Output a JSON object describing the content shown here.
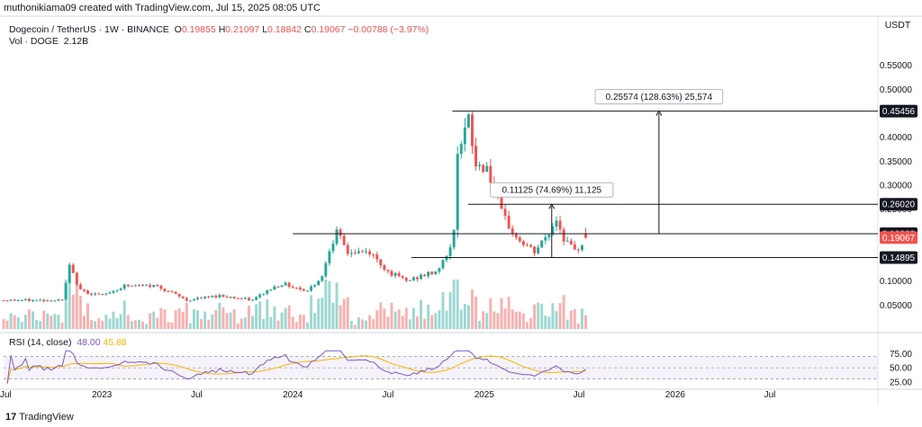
{
  "header": {
    "credit": "muthonikiama09 created with TradingView.com, Jul 15, 2025 08:05 UTC"
  },
  "legend": {
    "symbol": "Dogecoin / TetherUS · 1W · BINANCE",
    "open_label": "O",
    "open": "0.19855",
    "high_label": "H",
    "high": "0.21097",
    "low_label": "L",
    "low": "0.18842",
    "close_label": "C",
    "close": "0.19067",
    "change": "−0.00788 (−3.97%)",
    "volume_label": "Vol · DOGE",
    "volume_value": "2.12B",
    "rsi_label": "RSI (14, close)",
    "rsi_value": "48.00",
    "rsi_ma_value": "45.88"
  },
  "currency": "USDT",
  "brand": {
    "logo": "17",
    "name": "TradingView"
  },
  "colors": {
    "up": "#26a69a",
    "down": "#ef5350",
    "rsi": "#7e57c2",
    "rsi_ma": "#f5b800"
  },
  "chart_data": {
    "type": "candlestick",
    "x_ticks": [
      "Jul",
      "2023",
      "Jul",
      "2024",
      "Jul",
      "2025",
      "Jul",
      "2026",
      "Jul"
    ],
    "x_tick_dates": [
      "2022-07-01",
      "2023-01-01",
      "2023-07-01",
      "2024-01-01",
      "2024-07-01",
      "2025-01-01",
      "2025-07-01",
      "2026-01-01",
      "2026-07-01"
    ],
    "x_range": [
      "2022-06-27",
      "2027-01-15"
    ],
    "y_ticks": [
      0.55,
      0.5,
      0.45,
      0.4,
      0.35,
      0.3,
      0.25,
      0.2,
      0.15,
      0.1,
      0.05
    ],
    "y_tick_labels": [
      "0.55000",
      "0.50000",
      "0.45000",
      "0.40000",
      "0.35000",
      "0.30000",
      "0.25000",
      "0.20000",
      "0.15000",
      "0.10000",
      "0.05000"
    ],
    "y_range": [
      0.0,
      0.57
    ],
    "price_levels": [
      {
        "value": 0.45456,
        "label": "0.45456",
        "start": "2024-11-01"
      },
      {
        "value": 0.2602,
        "label": "0.26020",
        "start": "2024-12-01"
      },
      {
        "value": 0.19882,
        "label": "0.19882",
        "start": "2024-01-01"
      },
      {
        "value": 0.14895,
        "label": "0.14895",
        "start": "2024-08-15"
      }
    ],
    "last_price": {
      "value": 0.19067,
      "label": "0.19067"
    },
    "measurements": [
      {
        "text": "0.11125 (74.69%) 11,125",
        "date": "2025-05-10",
        "from": 0.14895,
        "to": 0.2602
      },
      {
        "text": "0.25574 (128.63%) 25,574",
        "date": "2025-12-01",
        "from": 0.19882,
        "to": 0.45456
      }
    ],
    "anchors": [
      [
        "2022-06-27",
        0.06
      ],
      [
        "2022-10-17",
        0.06
      ],
      [
        "2022-10-31",
        0.13
      ],
      [
        "2022-11-21",
        0.08
      ],
      [
        "2023-01-02",
        0.07
      ],
      [
        "2023-02-13",
        0.09
      ],
      [
        "2023-04-17",
        0.09
      ],
      [
        "2023-06-12",
        0.06
      ],
      [
        "2023-08-14",
        0.07
      ],
      [
        "2023-10-16",
        0.06
      ],
      [
        "2023-11-13",
        0.08
      ],
      [
        "2023-12-11",
        0.095
      ],
      [
        "2024-01-29",
        0.08
      ],
      [
        "2024-02-26",
        0.11
      ],
      [
        "2024-03-11",
        0.17
      ],
      [
        "2024-03-25",
        0.2
      ],
      [
        "2024-04-15",
        0.16
      ],
      [
        "2024-05-27",
        0.16
      ],
      [
        "2024-07-01",
        0.12
      ],
      [
        "2024-08-05",
        0.1
      ],
      [
        "2024-09-30",
        0.12
      ],
      [
        "2024-10-21",
        0.15
      ],
      [
        "2024-11-04",
        0.2
      ],
      [
        "2024-11-11",
        0.38
      ],
      [
        "2024-12-02",
        0.43
      ],
      [
        "2024-12-16",
        0.34
      ],
      [
        "2025-01-06",
        0.34
      ],
      [
        "2025-02-03",
        0.24
      ],
      [
        "2025-03-03",
        0.19
      ],
      [
        "2025-04-07",
        0.16
      ],
      [
        "2025-05-05",
        0.2
      ],
      [
        "2025-05-19",
        0.23
      ],
      [
        "2025-06-02",
        0.19
      ],
      [
        "2025-06-23",
        0.16
      ],
      [
        "2025-07-14",
        0.19
      ]
    ],
    "rsi": {
      "y_ticks": [
        75,
        50,
        25
      ],
      "y_tick_labels": [
        "75.00",
        "50.00",
        "25.00"
      ],
      "band": [
        30,
        70
      ],
      "y_range": [
        20,
        82
      ]
    }
  }
}
